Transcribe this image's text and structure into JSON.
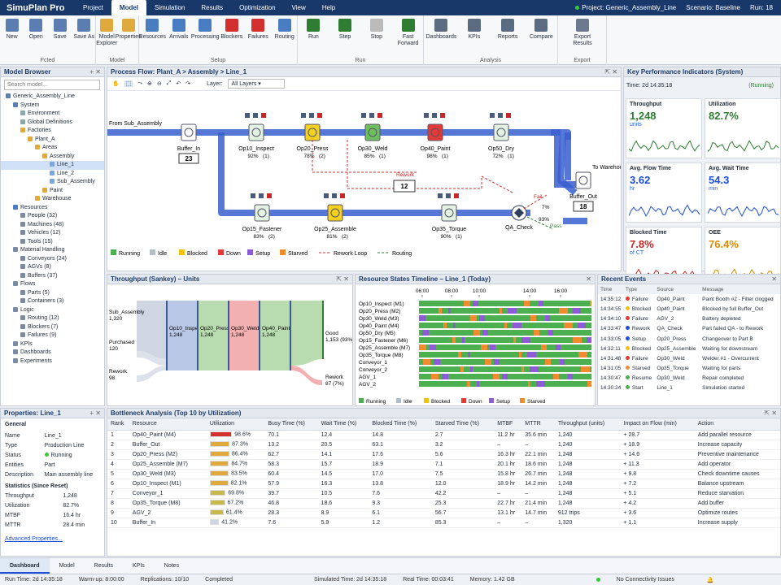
{
  "app": {
    "title": "SimuPlan Pro",
    "menu": [
      "Project",
      "Model",
      "Simulation",
      "Results",
      "Optimization",
      "View",
      "Help"
    ],
    "active_menu": "Model",
    "project_label": "Project: Generic_Assembly_Line",
    "scenario_label": "Scenario: Baseline",
    "run_label": "Run: 18"
  },
  "ribbon": {
    "groups": [
      {
        "label": "Fcted",
        "buttons": [
          "New",
          "Open",
          "Save",
          "Save As"
        ]
      },
      {
        "label": "Model",
        "buttons": [
          "Model Explorer",
          "Properties"
        ]
      },
      {
        "label": "Setup",
        "buttons": [
          "Resources",
          "Arrivals",
          "Processing",
          "Blockers",
          "Failures",
          "Routing"
        ]
      },
      {
        "label": "Run",
        "buttons": [
          "Run",
          "Step",
          "Stop",
          "Fast Forward"
        ]
      },
      {
        "label": "Analysis",
        "buttons": [
          "Dashboards",
          "KPIs",
          "Reports",
          "Compare"
        ]
      },
      {
        "label": "Export",
        "buttons": [
          "Export Results"
        ]
      }
    ]
  },
  "browser": {
    "title": "Model Browser",
    "search_placeholder": "Search model...",
    "items": [
      {
        "t": "Generic_Assembly_Line",
        "l": 0
      },
      {
        "t": "System",
        "l": 1
      },
      {
        "t": "Environment",
        "l": 2
      },
      {
        "t": "Global Definitions",
        "l": 2
      },
      {
        "t": "Factories",
        "l": 2
      },
      {
        "t": "Plant_A",
        "l": 3
      },
      {
        "t": "Areas",
        "l": 4
      },
      {
        "t": "Assembly",
        "l": 5
      },
      {
        "t": "Line_1",
        "l": 6,
        "sel": true
      },
      {
        "t": "Line_2",
        "l": 6
      },
      {
        "t": "Sub_Assembly",
        "l": 6
      },
      {
        "t": "Paint",
        "l": 5
      },
      {
        "t": "Warehouse",
        "l": 4
      },
      {
        "t": "Resources",
        "l": 1
      },
      {
        "t": "People (32)",
        "l": 2
      },
      {
        "t": "Machines (48)",
        "l": 2
      },
      {
        "t": "Vehicles (12)",
        "l": 2
      },
      {
        "t": "Tools (15)",
        "l": 2
      },
      {
        "t": "Material Handling",
        "l": 1
      },
      {
        "t": "Conveyors (24)",
        "l": 2
      },
      {
        "t": "AGVs (8)",
        "l": 2
      },
      {
        "t": "Buffers (37)",
        "l": 2
      },
      {
        "t": "Flows",
        "l": 1
      },
      {
        "t": "Parts (5)",
        "l": 2
      },
      {
        "t": "Containers (3)",
        "l": 2
      },
      {
        "t": "Logic",
        "l": 1
      },
      {
        "t": "Routing (12)",
        "l": 2
      },
      {
        "t": "Blockers (7)",
        "l": 2
      },
      {
        "t": "Failures (9)",
        "l": 2
      },
      {
        "t": "KPIs",
        "l": 1
      },
      {
        "t": "Dashboards",
        "l": 1
      },
      {
        "t": "Experiments",
        "l": 1
      }
    ]
  },
  "flow": {
    "title": "Process Flow: Plant_A > Assembly > Line_1",
    "layer_label": "Layer:",
    "layer_value": "All Layers",
    "from_label": "From Sub_Assembly",
    "to_label": "To Warehouse",
    "stations": [
      {
        "n": "Buffer_In",
        "v": "23"
      },
      {
        "n": "Op10_Inspect",
        "u": "92%",
        "c": "(1)"
      },
      {
        "n": "Op20_Press",
        "u": "78%",
        "c": "(2)"
      },
      {
        "n": "Op30_Weld",
        "u": "85%",
        "c": "(1)"
      },
      {
        "n": "Op40_Paint",
        "u": "98%",
        "c": "(1)"
      },
      {
        "n": "Op50_Dry",
        "u": "72%",
        "c": "(1)"
      },
      {
        "n": "Op15_Fastener",
        "u": "83%",
        "c": "(2)"
      },
      {
        "n": "Op25_Assemble",
        "u": "81%",
        "c": "(2)"
      },
      {
        "n": "Op35_Torque",
        "u": "90%",
        "c": "(1)"
      },
      {
        "n": "QA_Check"
      },
      {
        "n": "Buffer_Out",
        "v": "18"
      }
    ],
    "rework_label": "Rework",
    "rework_value": "12",
    "fail_label": "Fail",
    "fail_pct": "7%",
    "pass_label": "Pass",
    "pass_pct": "93%",
    "legend": [
      "Running",
      "Idle",
      "Blocked",
      "Down",
      "Setup",
      "Starved",
      "Rework Loop",
      "Routing"
    ]
  },
  "kpis": {
    "title": "Key Performance Indicators (System)",
    "time_label": "Time:  2d 14:35:18",
    "status": "(Running)",
    "cards": [
      {
        "t": "Throughput",
        "v": "1,248",
        "u": "units"
      },
      {
        "t": "Utilization",
        "v": "82.7%",
        "u": ""
      },
      {
        "t": "Avg. Flow Time",
        "v": "3.62",
        "u": "hr"
      },
      {
        "t": "Avg. Wait Time",
        "v": "54.3",
        "u": "min"
      },
      {
        "t": "Blocked Time",
        "v": "7.8%",
        "u": "of CT"
      },
      {
        "t": "OEE",
        "v": "76.4%",
        "u": ""
      }
    ]
  },
  "sankey": {
    "title": "Throughput (Sankey) – Units",
    "sources": [
      {
        "l": "Sub_Assembly",
        "v": "1,320"
      },
      {
        "l": "Purchased",
        "v": "120"
      },
      {
        "l": "Rework",
        "v": "98"
      }
    ],
    "nodes": [
      {
        "l": "Op10_Inspect",
        "v": "1,248"
      },
      {
        "l": "Op20_Press",
        "v": "1,248"
      },
      {
        "l": "Op30_Weld",
        "v": "1,248"
      },
      {
        "l": "Op40_Paint",
        "v": "1,248"
      },
      {
        "l": "Op50_Dry",
        "v": "1,240"
      }
    ],
    "good": {
      "l": "Good",
      "v": "1,153 (93%)"
    },
    "rework": {
      "l": "Rework",
      "v": "87 (7%)"
    }
  },
  "timeline": {
    "title": "Resource States Timeline – Line_1 (Today)",
    "ticks": [
      "06:00",
      "08:00",
      "10:00",
      "14:00",
      "16:00"
    ],
    "rows": [
      "Op10_Inspect (M1)",
      "Op20_Press (M2)",
      "Op30_Weld (M3)",
      "Op40_Paint (M4)",
      "Op50_Dry (M5)",
      "Op15_Fastener (M6)",
      "Op25_Assemble (M7)",
      "Op35_Torque (M8)",
      "Conveyor_1",
      "Conveyor_2",
      "AGV_1",
      "AGV_2"
    ],
    "legend": [
      "Running",
      "Idle",
      "Blocked",
      "Down",
      "Setup",
      "Starved"
    ]
  },
  "events": {
    "title": "Recent Events",
    "headers": [
      "Time",
      "Type",
      "Source",
      "Message"
    ],
    "rows": [
      [
        "14:35:12",
        "Failure",
        "Op40_Paint",
        "Paint Booth #2 - Filter clogged"
      ],
      [
        "14:34:55",
        "Blocked",
        "Op40_Paint",
        "Blocked by full Buffer_Out"
      ],
      [
        "14:34:10",
        "Failure",
        "AGV_2",
        "Battery depleted"
      ],
      [
        "14:33:47",
        "Rework",
        "QA_Check",
        "Part failed QA - to Rework"
      ],
      [
        "14:33:05",
        "Setup",
        "Op20_Press",
        "Changeover to Part B"
      ],
      [
        "14:32:11",
        "Blocked",
        "Op25_Assemble",
        "Waiting for downstream"
      ],
      [
        "14:31:48",
        "Failure",
        "Op30_Weld",
        "Welder #1 - Overcurrent"
      ],
      [
        "14:31:05",
        "Starved",
        "Op35_Torque",
        "Waiting for parts"
      ],
      [
        "14:30:47",
        "Resume",
        "Op30_Weld",
        "Repair completed"
      ],
      [
        "14:30:24",
        "Start",
        "Line_1",
        "Simulation started"
      ]
    ]
  },
  "props": {
    "title": "Properties: Line_1",
    "general_label": "General",
    "rows": [
      [
        "Name",
        "Line_1"
      ],
      [
        "Type",
        "Production Line"
      ],
      [
        "Status",
        "Running"
      ],
      [
        "Entities",
        "Part"
      ],
      [
        "Description",
        "Main assembly line"
      ]
    ],
    "stats_label": "Statistics (Since Reset)",
    "stats": [
      [
        "Throughput",
        "1,248"
      ],
      [
        "Utilization",
        "82.7%"
      ],
      [
        "MTBF",
        "16.4 hr"
      ],
      [
        "MTTR",
        "28.4 min"
      ]
    ],
    "advanced": "Advanced Properties..."
  },
  "bottleneck": {
    "title": "Bottleneck Analysis (Top 10 by Utilization)",
    "headers": [
      "Rank",
      "Resource",
      "Utilization",
      "Busy Time (%)",
      "Wait Time (%)",
      "Blocked Time (%)",
      "Starved Time (%)",
      "MTBF",
      "MTTR",
      "Throughput (units)",
      "Impact on Flow (min)",
      "Action"
    ],
    "rows": [
      [
        "1",
        "Op40_Paint (M4)",
        "98.6%",
        "70.1",
        "12.4",
        "14.8",
        "2.7",
        "11.2 hr",
        "35.6 min",
        "1,240",
        "+ 28.7",
        "Add parallel resource"
      ],
      [
        "2",
        "Buffer_Out",
        "87.3%",
        "13.2",
        "20.5",
        "63.1",
        "3.2",
        "–",
        "–",
        "1,240",
        "+ 18.9",
        "Increase capacity"
      ],
      [
        "3",
        "Op20_Press (M2)",
        "86.4%",
        "62.7",
        "14.1",
        "17.6",
        "5.6",
        "16.3 hr",
        "22.1 min",
        "1,248",
        "+ 14.6",
        "Preventive maintenance"
      ],
      [
        "4",
        "Op25_Assemble (M7)",
        "84.7%",
        "58.3",
        "15.7",
        "18.9",
        "7.1",
        "20.1 hr",
        "18.6 min",
        "1,248",
        "+ 11.3",
        "Add operator"
      ],
      [
        "5",
        "Op30_Weld (M3)",
        "83.5%",
        "60.4",
        "14.5",
        "17.0",
        "7.5",
        "15.8 hr",
        "26.7 min",
        "1,248",
        "+ 9.8",
        "Check downtime causes"
      ],
      [
        "6",
        "Op10_Inspect (M1)",
        "82.1%",
        "57.9",
        "16.3",
        "13.8",
        "12.0",
        "18.9 hr",
        "14.2 min",
        "1,248",
        "+ 7.2",
        "Balance upstream"
      ],
      [
        "7",
        "Conveyor_1",
        "69.8%",
        "39.7",
        "10.5",
        "7.6",
        "42.2",
        "–",
        "–",
        "1,248",
        "+ 5.1",
        "Reduce starvation"
      ],
      [
        "8",
        "Op35_Torque (M8)",
        "67.2%",
        "46.8",
        "18.6",
        "9.3",
        "25.3",
        "22.7 hr",
        "21.4 min",
        "1,248",
        "+ 4.2",
        "Add buffer"
      ],
      [
        "9",
        "AGV_2",
        "61.4%",
        "28.3",
        "8.9",
        "6.1",
        "56.7",
        "13.1 hr",
        "14.7 min",
        "912 trips",
        "+ 3.6",
        "Optimize routes"
      ],
      [
        "10",
        "Buffer_In",
        "41.2%",
        "7.6",
        "5.9",
        "1.2",
        "85.3",
        "–",
        "–",
        "1,320",
        "+ 1.1",
        "Increase supply"
      ]
    ],
    "util": [
      0.986,
      0.873,
      0.864,
      0.847,
      0.835,
      0.821,
      0.698,
      0.672,
      0.614,
      0.412
    ]
  },
  "tabs": [
    "Dashboard",
    "Model",
    "Results",
    "KPIs",
    "Notes"
  ],
  "status": {
    "run_time": "Run Time:  2d 14:35:18",
    "warmup": "Warm-up:  8:00:00",
    "reps": "Replications:  10/10",
    "completed": "Completed",
    "sim_time": "Simulated Time:  2d 14:35:18",
    "real_time": "Real Time:  00:03:41",
    "memory": "Memory:  1.42 GB",
    "conn": "No Connectivity Issues"
  },
  "colors": {
    "running": "#4caf50",
    "idle": "#b0bec5",
    "blocked": "#f4c20d",
    "down": "#e53935",
    "setup": "#8e5bd6",
    "starved": "#f08c2e"
  }
}
